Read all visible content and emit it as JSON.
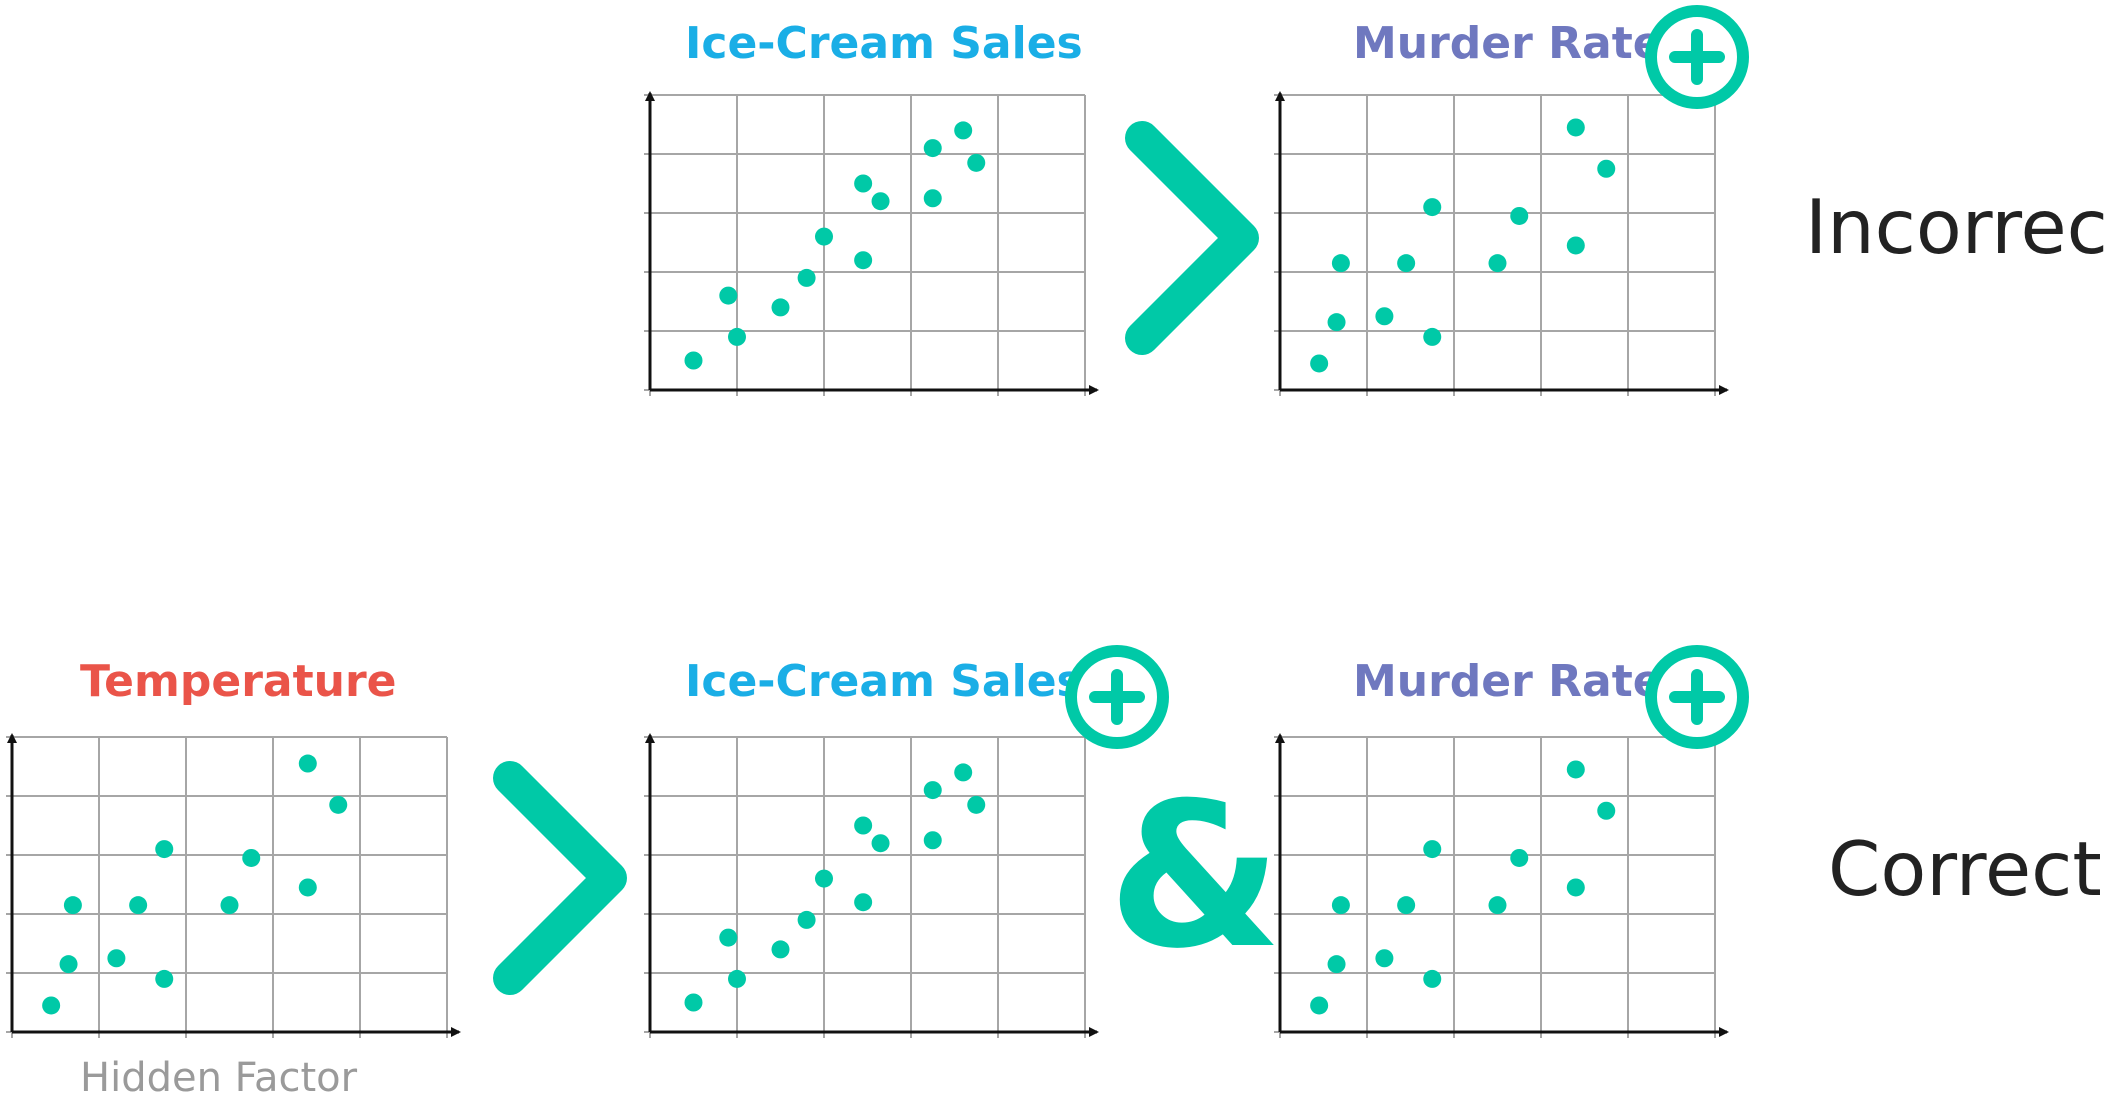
{
  "colors": {
    "accent": "#00c9a7",
    "ice_cream": "#1aaee6",
    "murder": "#6f78bf",
    "temperature": "#ea5449",
    "grid": "#a6a6a6",
    "axis": "#111111",
    "text": "#222222",
    "caption": "#9a9a9a"
  },
  "labels": {
    "ice_cream": "Ice-Cream Sales",
    "murder": "Murder Rate",
    "temperature": "Temperature",
    "hidden_factor": "Hidden Factor",
    "incorrect": "Incorrect",
    "correct": "Correct"
  },
  "icons": {
    "arrow": "chevron-right-icon",
    "plus": "plus-circle-icon",
    "ampersand": "&"
  },
  "point_sets": {
    "ice_cream": [
      [
        0.5,
        0.5
      ],
      [
        0.9,
        1.6
      ],
      [
        1.0,
        0.9
      ],
      [
        1.5,
        1.4
      ],
      [
        1.8,
        1.9
      ],
      [
        2.0,
        2.6
      ],
      [
        2.45,
        2.2
      ],
      [
        2.45,
        3.5
      ],
      [
        2.65,
        3.2
      ],
      [
        3.25,
        3.25
      ],
      [
        3.25,
        4.1
      ],
      [
        3.6,
        4.4
      ],
      [
        3.75,
        3.85
      ]
    ],
    "murder": [
      [
        0.45,
        0.45
      ],
      [
        0.65,
        1.15
      ],
      [
        0.7,
        2.15
      ],
      [
        1.2,
        1.25
      ],
      [
        1.45,
        2.15
      ],
      [
        1.75,
        0.9
      ],
      [
        1.75,
        3.1
      ],
      [
        2.5,
        2.15
      ],
      [
        2.75,
        2.95
      ],
      [
        3.4,
        2.45
      ],
      [
        3.4,
        4.45
      ],
      [
        3.75,
        3.75
      ]
    ],
    "temperature": [
      [
        0.45,
        0.45
      ],
      [
        0.65,
        1.15
      ],
      [
        0.7,
        2.15
      ],
      [
        1.2,
        1.25
      ],
      [
        1.45,
        2.15
      ],
      [
        1.75,
        0.9
      ],
      [
        1.75,
        3.1
      ],
      [
        2.5,
        2.15
      ],
      [
        2.75,
        2.95
      ],
      [
        3.4,
        2.45
      ],
      [
        3.4,
        4.55
      ],
      [
        3.75,
        3.85
      ]
    ]
  },
  "rows": [
    {
      "verdict_key": "incorrect",
      "plots": [
        {
          "label_key": "ice_cream",
          "points_key": "ice_cream",
          "plus": false
        },
        {
          "label_key": "murder",
          "points_key": "murder",
          "plus": true
        }
      ],
      "connectors": [
        "arrow"
      ]
    },
    {
      "verdict_key": "correct",
      "plots": [
        {
          "label_key": "temperature",
          "points_key": "temperature",
          "plus": false,
          "caption_key": "hidden_factor"
        },
        {
          "label_key": "ice_cream",
          "points_key": "ice_cream",
          "plus": true
        },
        {
          "label_key": "murder",
          "points_key": "murder",
          "plus": true
        }
      ],
      "connectors": [
        "arrow",
        "ampersand"
      ]
    }
  ]
}
